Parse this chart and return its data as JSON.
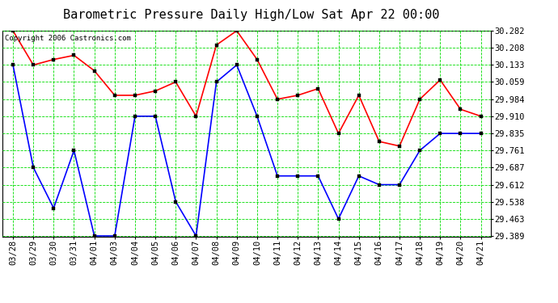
{
  "title": "Barometric Pressure Daily High/Low Sat Apr 22 00:00",
  "copyright": "Copyright 2006 Castronics.com",
  "x_labels": [
    "03/28",
    "03/29",
    "03/30",
    "03/31",
    "04/01",
    "04/03",
    "04/04",
    "04/05",
    "04/06",
    "04/07",
    "04/08",
    "04/09",
    "04/10",
    "04/11",
    "04/12",
    "04/13",
    "04/14",
    "04/15",
    "04/16",
    "04/17",
    "04/18",
    "04/19",
    "04/20",
    "04/21"
  ],
  "high_values": [
    30.282,
    30.133,
    30.157,
    30.175,
    30.108,
    30.001,
    30.001,
    30.02,
    30.059,
    29.91,
    30.22,
    30.282,
    30.157,
    29.984,
    30.001,
    30.03,
    29.835,
    30.001,
    29.8,
    29.78,
    29.984,
    30.068,
    29.94,
    29.91
  ],
  "low_values": [
    30.133,
    29.687,
    29.51,
    29.761,
    29.389,
    29.389,
    29.91,
    29.91,
    29.538,
    29.389,
    30.059,
    30.133,
    29.91,
    29.65,
    29.65,
    29.65,
    29.463,
    29.65,
    29.612,
    29.612,
    29.761,
    29.835,
    29.835,
    29.835
  ],
  "high_color": "#ff0000",
  "low_color": "#0000ff",
  "bg_color": "#ffffff",
  "grid_color": "#00dd00",
  "plot_bg_color": "#ffffff",
  "ymin": 29.389,
  "ymax": 30.282,
  "yticks": [
    29.389,
    29.463,
    29.538,
    29.612,
    29.687,
    29.761,
    29.835,
    29.91,
    29.984,
    30.059,
    30.133,
    30.208,
    30.282
  ],
  "title_fontsize": 11,
  "tick_fontsize": 7.5,
  "copyright_fontsize": 6.5,
  "marker_size": 3,
  "line_width": 1.2
}
